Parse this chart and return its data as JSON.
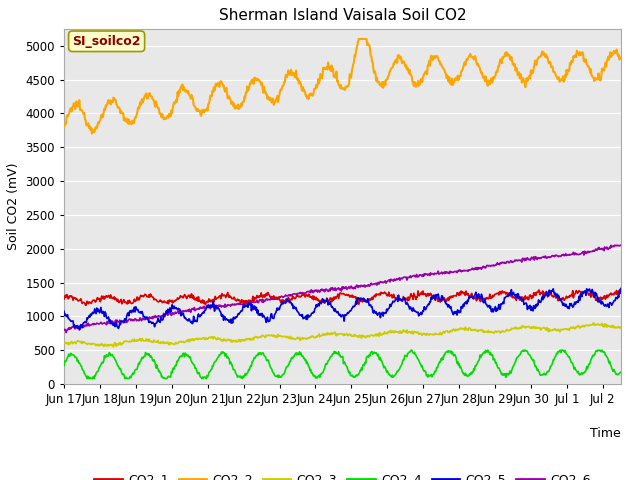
{
  "title": "Sherman Island Vaisala Soil CO2",
  "ylabel": "Soil CO2 (mV)",
  "xlabel": "Time",
  "annotation_label": "SI_soilco2",
  "annotation_color": "#8B0000",
  "annotation_bg": "#FFFFCC",
  "bg_color": "#E8E8E8",
  "ylim": [
    0,
    5250
  ],
  "yticks": [
    0,
    500,
    1000,
    1500,
    2000,
    2500,
    3000,
    3500,
    4000,
    4500,
    5000
  ],
  "series": {
    "CO2_1": {
      "color": "#DD0000",
      "lw": 1.2
    },
    "CO2_2": {
      "color": "#FFA500",
      "lw": 1.5
    },
    "CO2_3": {
      "color": "#CCCC00",
      "lw": 1.2
    },
    "CO2_4": {
      "color": "#00DD00",
      "lw": 1.2
    },
    "CO2_5": {
      "color": "#0000DD",
      "lw": 1.2
    },
    "CO2_6": {
      "color": "#9900AA",
      "lw": 1.2
    }
  },
  "x_tick_labels": [
    "Jun 17",
    "Jun 18",
    "Jun 19",
    "Jun 20",
    "Jun 21",
    "Jun 22",
    "Jun 23",
    "Jun 24",
    "Jun 25",
    "Jun 26",
    "Jun 27",
    "Jun 28",
    "Jun 29",
    "Jun 30",
    "Jul 1",
    "Jul 2"
  ],
  "n_days": 15.5,
  "n_points": 800,
  "figsize": [
    6.4,
    4.8
  ],
  "dpi": 100
}
